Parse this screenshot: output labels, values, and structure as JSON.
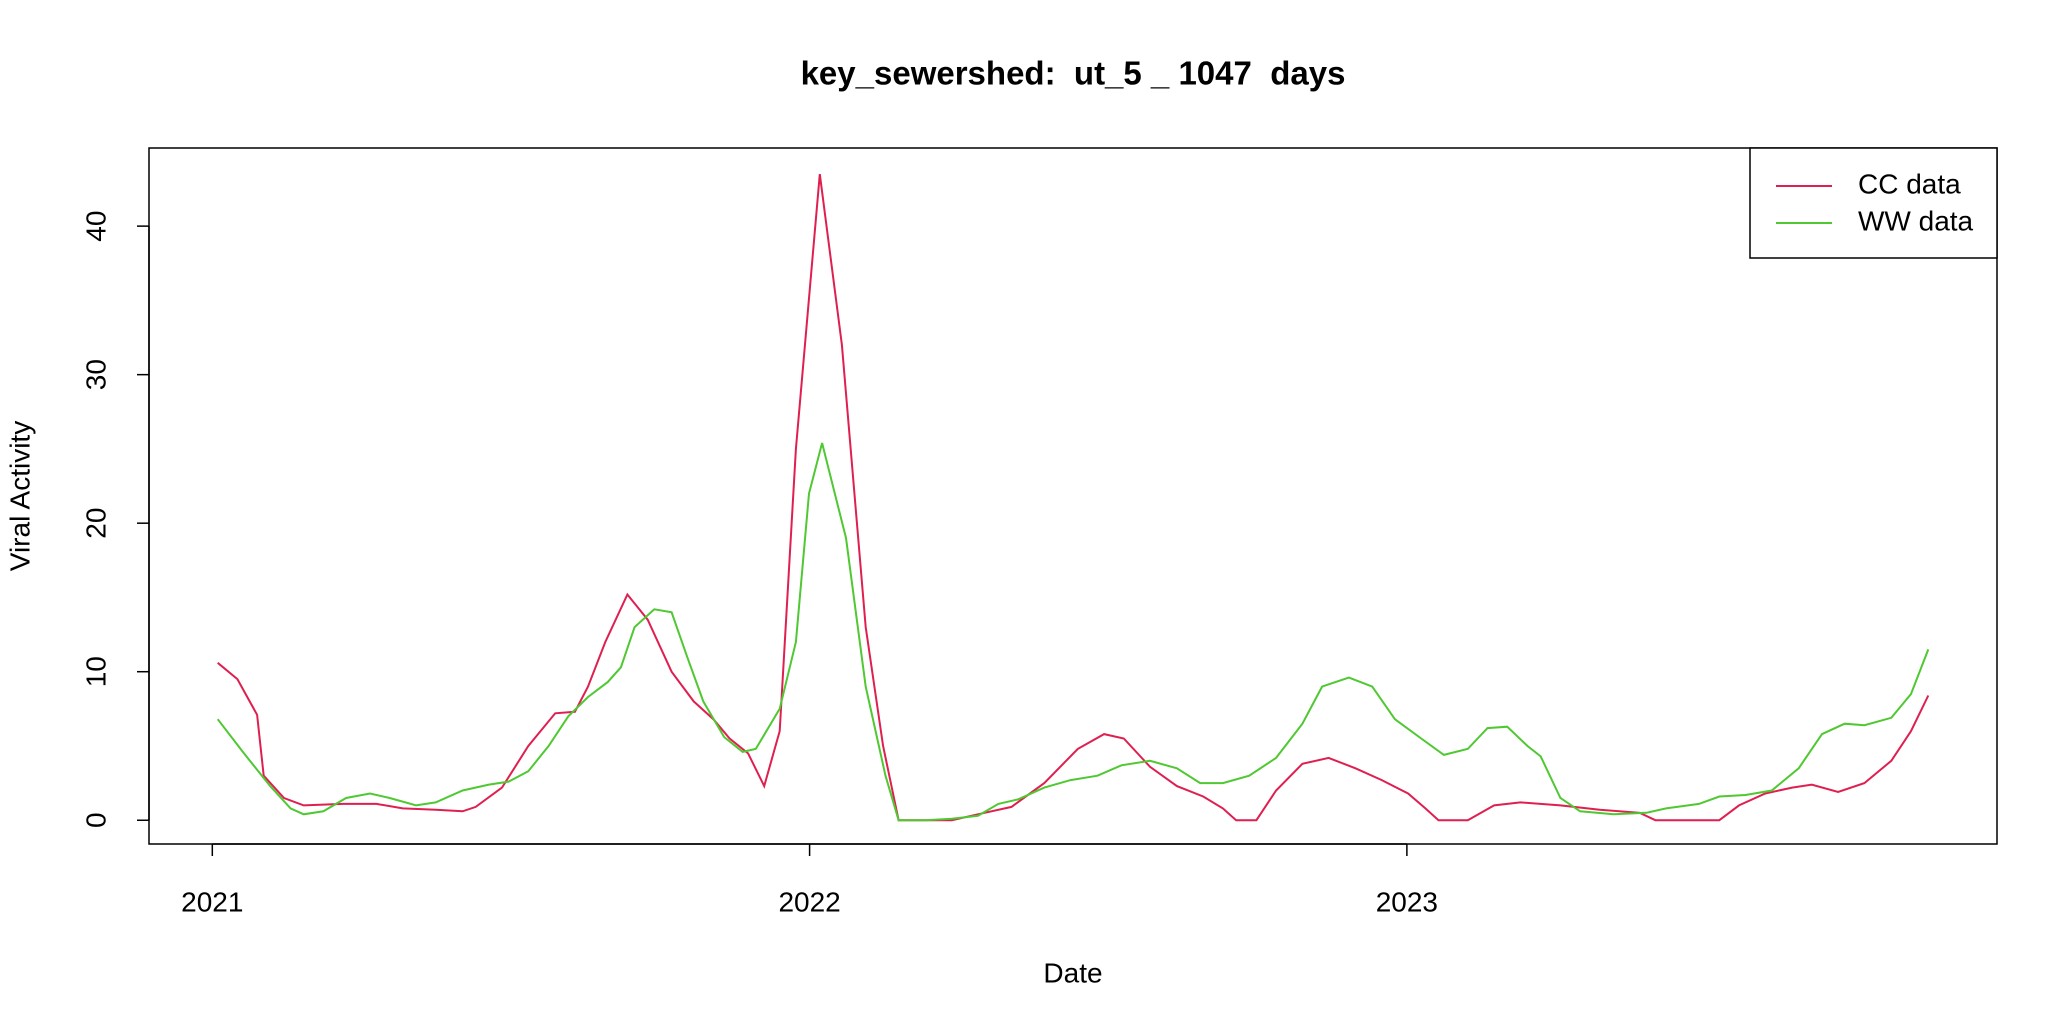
{
  "chart_data": {
    "type": "line",
    "title": "key_sewershed:  ut_5 _ 1047  days",
    "xlabel": "Date",
    "ylabel": "Viral Activity",
    "xlim": [
      2020.894,
      2023.988
    ],
    "xticks": [
      2021,
      2022,
      2023
    ],
    "ylim": [
      -1.6,
      45.26
    ],
    "yticks": [
      0,
      10,
      20,
      30,
      40
    ],
    "legend": "top-right",
    "series": [
      {
        "name": "CC data",
        "color": "#df1f4f",
        "x": [
          2021.009,
          2021.042,
          2021.075,
          2021.086,
          2021.12,
          2021.153,
          2021.219,
          2021.275,
          2021.319,
          2021.374,
          2021.419,
          2021.441,
          2021.485,
          2021.529,
          2021.574,
          2021.607,
          2021.629,
          2021.658,
          2021.695,
          2021.729,
          2021.769,
          2021.806,
          2021.839,
          2021.866,
          2021.897,
          2021.924,
          2021.95,
          2021.977,
          2022.017,
          2022.054,
          2022.094,
          2022.123,
          2022.149,
          2022.194,
          2022.238,
          2022.293,
          2022.338,
          2022.393,
          2022.449,
          2022.493,
          2022.526,
          2022.57,
          2022.615,
          2022.659,
          2022.692,
          2022.714,
          2022.748,
          2022.781,
          2022.825,
          2022.869,
          2022.914,
          2022.958,
          2023.002,
          2023.031,
          2023.053,
          2023.102,
          2023.146,
          2023.19,
          2023.257,
          2023.323,
          2023.39,
          2023.416,
          2023.523,
          2023.556,
          2023.6,
          2023.645,
          2023.678,
          2023.722,
          2023.766,
          2023.811,
          2023.844,
          2023.873
        ],
        "values": [
          10.6,
          9.5,
          7.1,
          3.0,
          1.5,
          1.0,
          1.1,
          1.1,
          0.8,
          0.7,
          0.6,
          0.9,
          2.2,
          5,
          7.2,
          7.3,
          9,
          12,
          15.2,
          13.5,
          10,
          8,
          6.8,
          5.5,
          4.5,
          2.3,
          6,
          25,
          43.5,
          32,
          13,
          5,
          0,
          0,
          0,
          0.5,
          0.9,
          2.5,
          4.8,
          5.8,
          5.5,
          3.6,
          2.3,
          1.6,
          0.8,
          0,
          0,
          2,
          3.8,
          4.2,
          3.5,
          2.7,
          1.8,
          0.8,
          0,
          0,
          1.0,
          1.2,
          1.0,
          0.7,
          0.5,
          0,
          0,
          1.0,
          1.8,
          2.2,
          2.4,
          1.9,
          2.5,
          4,
          6,
          8.4
        ]
      },
      {
        "name": "WW data",
        "color": "#4fc832",
        "x": [
          2021.009,
          2021.053,
          2021.097,
          2021.131,
          2021.153,
          2021.186,
          2021.224,
          2021.264,
          2021.297,
          2021.341,
          2021.374,
          2021.419,
          2021.463,
          2021.496,
          2021.529,
          2021.563,
          2021.596,
          2021.629,
          2021.662,
          2021.684,
          2021.707,
          2021.74,
          2021.769,
          2021.795,
          2021.822,
          2021.857,
          2021.888,
          2021.91,
          2021.95,
          2021.977,
          2021.999,
          2022.021,
          2022.061,
          2022.094,
          2022.127,
          2022.149,
          2022.194,
          2022.238,
          2022.282,
          2022.316,
          2022.349,
          2022.393,
          2022.437,
          2022.482,
          2022.522,
          2022.57,
          2022.615,
          2022.654,
          2022.692,
          2022.736,
          2022.781,
          2022.825,
          2022.858,
          2022.903,
          2022.942,
          2022.98,
          2023.024,
          2023.062,
          2023.102,
          2023.135,
          2023.168,
          2023.202,
          2023.224,
          2023.257,
          2023.29,
          2023.346,
          2023.401,
          2023.434,
          2023.489,
          2023.523,
          2023.567,
          2023.611,
          2023.656,
          2023.695,
          2023.733,
          2023.766,
          2023.811,
          2023.844,
          2023.873
        ],
        "values": [
          6.8,
          4.5,
          2.3,
          0.8,
          0.4,
          0.6,
          1.5,
          1.8,
          1.5,
          1.0,
          1.2,
          2.0,
          2.4,
          2.6,
          3.3,
          5,
          7,
          8.3,
          9.3,
          10.3,
          13,
          14.2,
          14,
          11,
          8,
          5.6,
          4.6,
          4.8,
          7.5,
          12,
          22,
          25.4,
          19,
          9,
          3,
          0,
          0,
          0.1,
          0.3,
          1.1,
          1.4,
          2.2,
          2.7,
          3.0,
          3.7,
          4.0,
          3.5,
          2.5,
          2.5,
          3.0,
          4.2,
          6.5,
          9.0,
          9.6,
          9.0,
          6.8,
          5.5,
          4.4,
          4.8,
          6.2,
          6.3,
          5,
          4.3,
          1.5,
          0.6,
          0.4,
          0.5,
          0.8,
          1.1,
          1.6,
          1.7,
          2.0,
          3.5,
          5.8,
          6.5,
          6.4,
          6.9,
          8.5,
          11.5
        ]
      }
    ]
  }
}
